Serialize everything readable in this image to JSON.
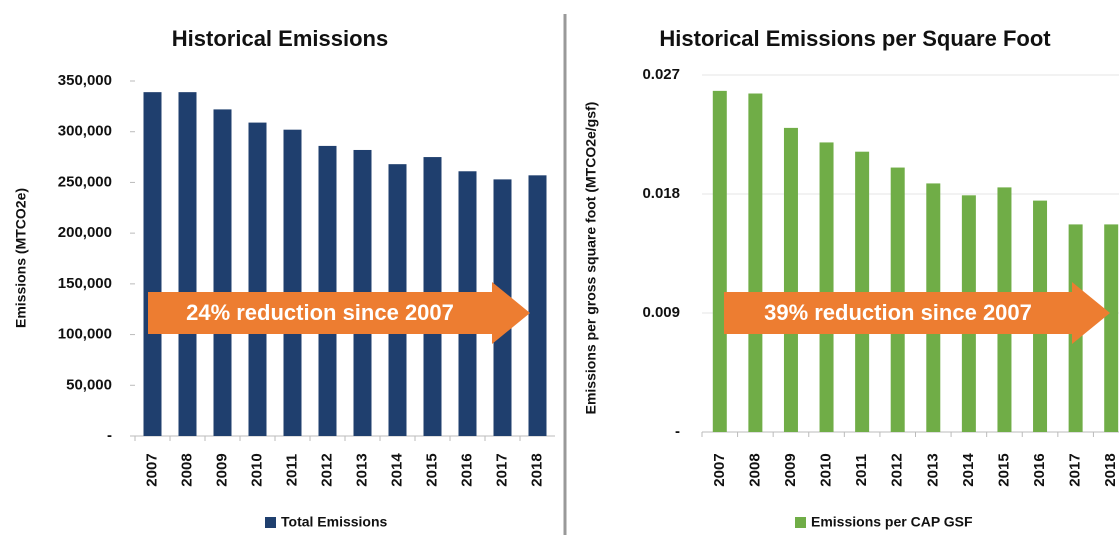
{
  "chart_data": [
    {
      "type": "bar",
      "title": "Historical Emissions",
      "ylabel": "Emissions (MTCO2e)",
      "categories": [
        "2007",
        "2008",
        "2009",
        "2010",
        "2011",
        "2012",
        "2013",
        "2014",
        "2015",
        "2016",
        "2017",
        "2018"
      ],
      "series": [
        {
          "name": "Total Emissions",
          "color": "#1f3f6e",
          "values": [
            339000,
            339000,
            322000,
            309000,
            302000,
            286000,
            282000,
            268000,
            275000,
            261000,
            253000,
            257000
          ]
        }
      ],
      "ylim": [
        0,
        350000
      ],
      "yticks": [
        {
          "value": 0,
          "label": "-"
        },
        {
          "value": 50000,
          "label": "50,000"
        },
        {
          "value": 100000,
          "label": "100,000"
        },
        {
          "value": 150000,
          "label": "150,000"
        },
        {
          "value": 200000,
          "label": "200,000"
        },
        {
          "value": 250000,
          "label": "250,000"
        },
        {
          "value": 300000,
          "label": "300,000"
        },
        {
          "value": 350000,
          "label": "350,000"
        }
      ],
      "grid": false,
      "legend": "bottom",
      "annotations": [
        "24% reduction since 2007"
      ]
    },
    {
      "type": "bar",
      "title": "Historical Emissions per Square Foot",
      "ylabel": "Emissions per gross square foot (MTCO2e/gsf)",
      "categories": [
        "2007",
        "2008",
        "2009",
        "2010",
        "2011",
        "2012",
        "2013",
        "2014",
        "2015",
        "2016",
        "2017",
        "2018"
      ],
      "series": [
        {
          "name": "Emissions per CAP GSF",
          "color": "#70ad47",
          "values": [
            0.0258,
            0.0256,
            0.023,
            0.0219,
            0.0212,
            0.02,
            0.0188,
            0.0179,
            0.0185,
            0.0175,
            0.0157,
            0.0157
          ]
        }
      ],
      "ylim": [
        0,
        0.027
      ],
      "yticks": [
        {
          "value": 0,
          "label": "-"
        },
        0.009,
        0.018,
        0.027
      ],
      "grid": true,
      "legend": "bottom",
      "annotations": [
        "39% reduction since 2007"
      ]
    }
  ]
}
